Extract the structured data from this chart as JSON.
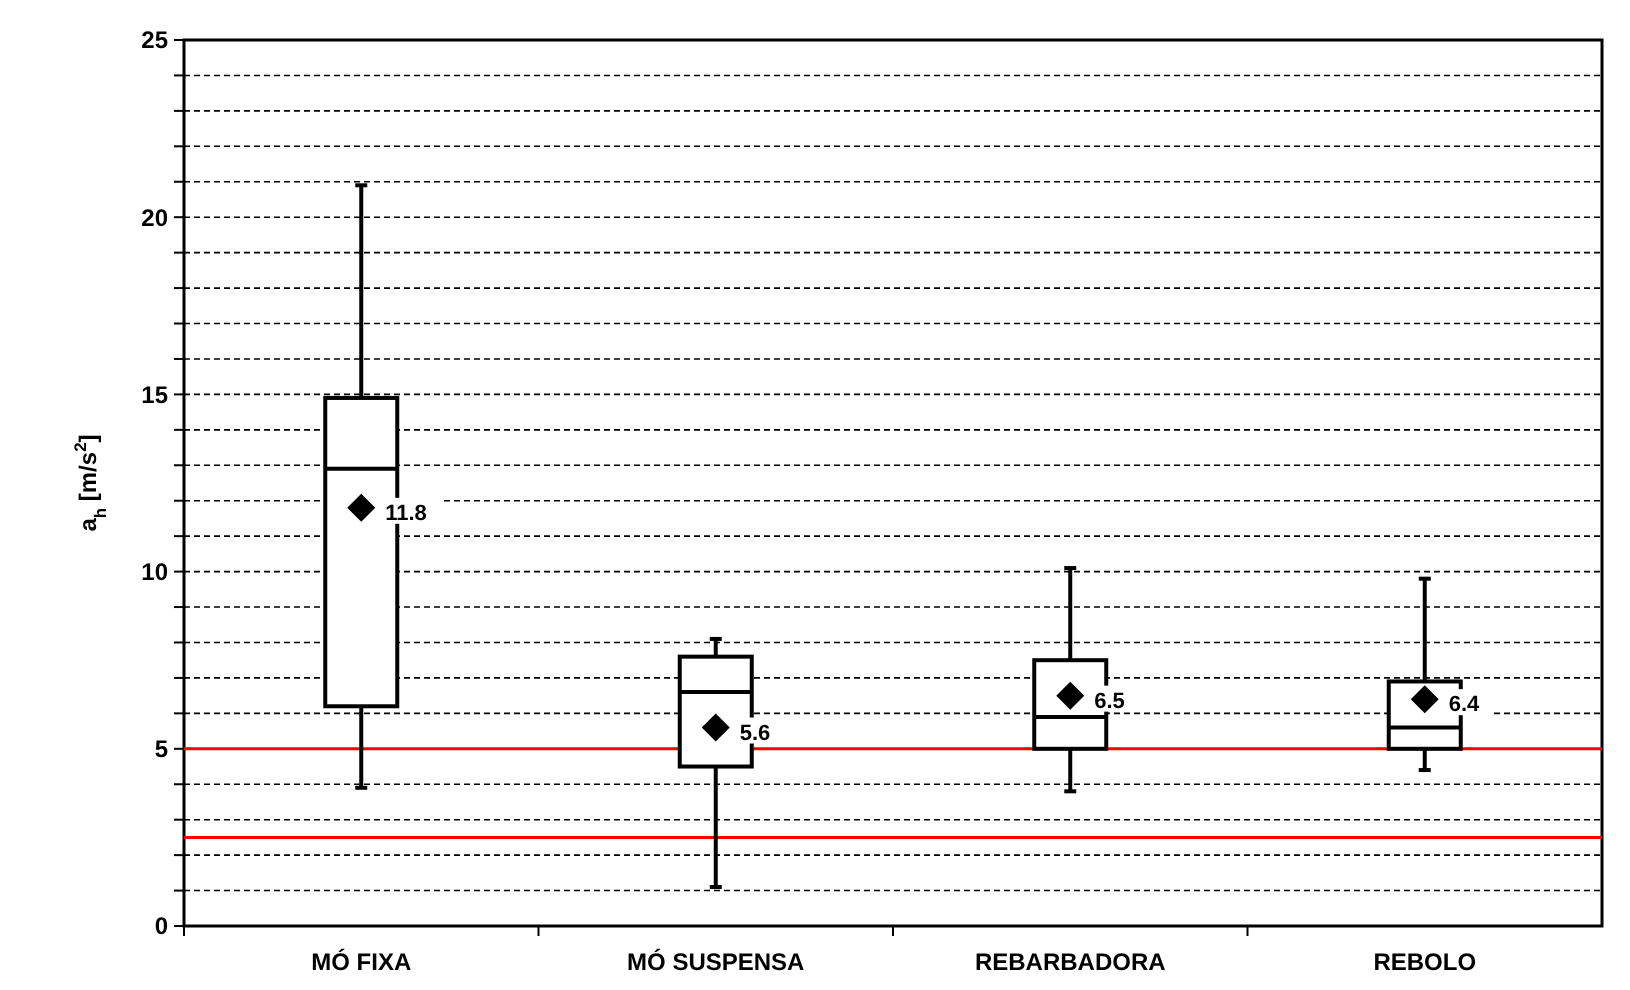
{
  "chart_data": {
    "type": "box",
    "ylabel": "a$_{h}$ [m/s$^{2}$]",
    "categories": [
      "MÓ FIXA",
      "MÓ SUSPENSA",
      "REBARBADORA",
      "REBOLO"
    ],
    "boxes": [
      {
        "low": 3.9,
        "q1": 6.2,
        "median": 12.9,
        "q3": 14.9,
        "high": 20.9,
        "mean": 11.8
      },
      {
        "low": 1.1,
        "q1": 4.5,
        "median": 6.6,
        "q3": 7.6,
        "high": 8.1,
        "mean": 5.6
      },
      {
        "low": 3.8,
        "q1": 5.0,
        "median": 5.9,
        "q3": 7.5,
        "high": 10.1,
        "mean": 6.5
      },
      {
        "low": 4.4,
        "q1": 5.0,
        "median": 5.6,
        "q3": 6.9,
        "high": 9.8,
        "mean": 6.4
      }
    ],
    "color": "#000000",
    "marker": "diamond",
    "value_labels": [
      "11.8",
      "5.6",
      "6.5",
      "6.4"
    ],
    "ref_lines": [
      {
        "axis": "y",
        "value": 5,
        "color": "#ff0000"
      },
      {
        "axis": "y",
        "value": 2.5,
        "color": "#ff0000"
      }
    ],
    "ylim": [
      0,
      25
    ],
    "yticks": [
      0,
      {
        "value": 1,
        "label": null
      },
      {
        "value": 2,
        "label": null
      },
      {
        "value": 3,
        "label": null
      },
      {
        "value": 4,
        "label": null
      },
      5,
      {
        "value": 6,
        "label": null
      },
      {
        "value": 7,
        "label": null
      },
      {
        "value": 8,
        "label": null
      },
      {
        "value": 9,
        "label": null
      },
      10,
      {
        "value": 11,
        "label": null
      },
      {
        "value": 12,
        "label": null
      },
      {
        "value": 13,
        "label": null
      },
      {
        "value": 14,
        "label": null
      },
      15,
      {
        "value": 16,
        "label": null
      },
      {
        "value": 17,
        "label": null
      },
      {
        "value": 18,
        "label": null
      },
      {
        "value": 19,
        "label": null
      },
      20,
      {
        "value": 21,
        "label": null
      },
      {
        "value": 22,
        "label": null
      },
      {
        "value": 23,
        "label": null
      },
      {
        "value": 24,
        "label": null
      },
      25
    ],
    "grid": "y"
  }
}
